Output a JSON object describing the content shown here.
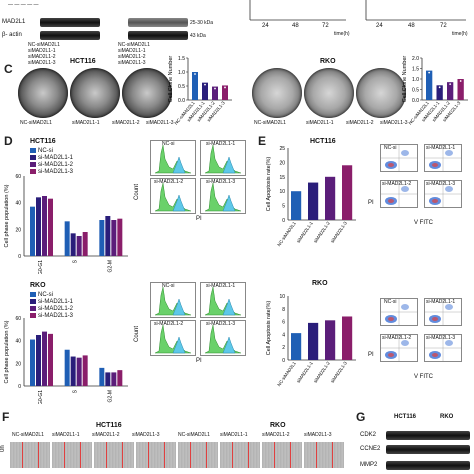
{
  "panelA": {
    "labels": [
      "MAD2L1",
      "β- actin"
    ],
    "lanes": [
      "NC-siMAD2L1",
      "siMAD2L1-1",
      "siMAD2L1-2",
      "siMAD2L1-3"
    ],
    "kda": [
      "25-30 kDa",
      "43 kDa"
    ],
    "xticks": [
      "24",
      "48",
      "72"
    ],
    "xunit": "time(h)"
  },
  "panelC": {
    "letter": "C",
    "hct_title": "HCT116",
    "rko_title": "RKO",
    "dish_labels_hct": [
      "NC-siMAD2L1",
      "siMAD2L1-1",
      "siMAD2L1-2",
      "siMAD2L1-3"
    ],
    "dish_labels_rko": [
      "NC-siMAD2L1",
      "siMAD2L1-1",
      "siMAD2L1-2",
      "siMAD2L1-3"
    ],
    "ylabel": "Cell Clone Number",
    "hct_bars": {
      "values": [
        1.0,
        0.62,
        0.48,
        0.52
      ],
      "ylim": [
        0,
        1.5
      ],
      "ticks": [
        "1.5",
        "1.0",
        "0.5",
        "0.0"
      ],
      "colors": [
        "#1f5fb5",
        "#2a1e7a",
        "#5b1e7a",
        "#8a1e6a"
      ]
    },
    "rko_bars": {
      "values": [
        1.4,
        0.7,
        0.85,
        1.0
      ],
      "ylim": [
        0,
        2.0
      ],
      "ticks": [
        "2.0",
        "1.5",
        "1.0",
        "0.5",
        "0.0"
      ],
      "colors": [
        "#1f5fb5",
        "#2a1e7a",
        "#5b1e7a",
        "#8a1e6a"
      ]
    },
    "stars": [
      "*",
      "**",
      "*",
      "**"
    ]
  },
  "panelD": {
    "letter": "D",
    "hct_title": "HCT116",
    "rko_title": "RKO",
    "legend": [
      "NC-si",
      "si-MAD2L1-1",
      "si-MAD2L1-2",
      "si-MAD2L1-3"
    ],
    "colors": [
      "#1f5fb5",
      "#2a1e7a",
      "#5b1e7a",
      "#8a1e6a"
    ],
    "ylabel": "Cell phase population (%)",
    "categories": [
      "G0-G1",
      "S",
      "G2-M"
    ],
    "yticks_hct": [
      "60",
      "40",
      "20",
      "0"
    ],
    "yticks_rko": [
      "60",
      "40",
      "20",
      "0"
    ],
    "hct_values": [
      [
        37,
        44,
        45,
        43
      ],
      [
        26,
        17,
        15,
        18
      ],
      [
        27,
        30,
        27,
        28
      ]
    ],
    "rko_values": [
      [
        41,
        45,
        48,
        46
      ],
      [
        32,
        26,
        25,
        27
      ],
      [
        16,
        12,
        12,
        14
      ]
    ],
    "flow_labels_top": [
      "NC-si",
      "si-MAD2L1-1",
      "si-MAD2L1-2",
      "si-MAD2L1-3"
    ],
    "count_label": "Count",
    "pi_label": "PI"
  },
  "panelE": {
    "letter": "E",
    "hct_title": "HCT116",
    "rko_title": "RKO",
    "ylabel": "Cell Apoptosis rate(%)",
    "categories": [
      "NC-siMAD2L1",
      "siMAD2L1-1",
      "siMAD2L1-2",
      "siMAD2L1-3"
    ],
    "colors": [
      "#1f5fb5",
      "#2a1e7a",
      "#5b1e7a",
      "#8a1e6a"
    ],
    "hct_values": [
      10,
      13,
      15,
      19
    ],
    "hct_ticks": [
      "25",
      "20",
      "15",
      "10",
      "5",
      "0"
    ],
    "rko_values": [
      4.2,
      5.8,
      6.2,
      6.8
    ],
    "rko_ticks": [
      "10",
      "8",
      "6",
      "4",
      "2",
      "0"
    ],
    "facs_labels": [
      "NC-si",
      "si-MAD2L1-1",
      "si-MAD2L1-2",
      "si-MAD2L1-3"
    ],
    "pi_label": "PI",
    "fitc_label": "V FITC"
  },
  "panelF": {
    "letter": "F",
    "hct_title": "HCT116",
    "rko_title": "RKO",
    "lanes": [
      "NC-siMAD2L1",
      "siMAD2L1-1",
      "siMAD2L1-2",
      "siMAD2L1-3",
      "NC-siMAD2L1",
      "siMAD2L1-1",
      "siMAD2L1-2",
      "siMAD2L1-3"
    ],
    "time": "0h"
  },
  "panelG": {
    "letter": "G",
    "hct_title": "HCT116",
    "rko_title": "RKO",
    "proteins": [
      "CDK2",
      "CCNE2",
      "MMP2"
    ]
  }
}
